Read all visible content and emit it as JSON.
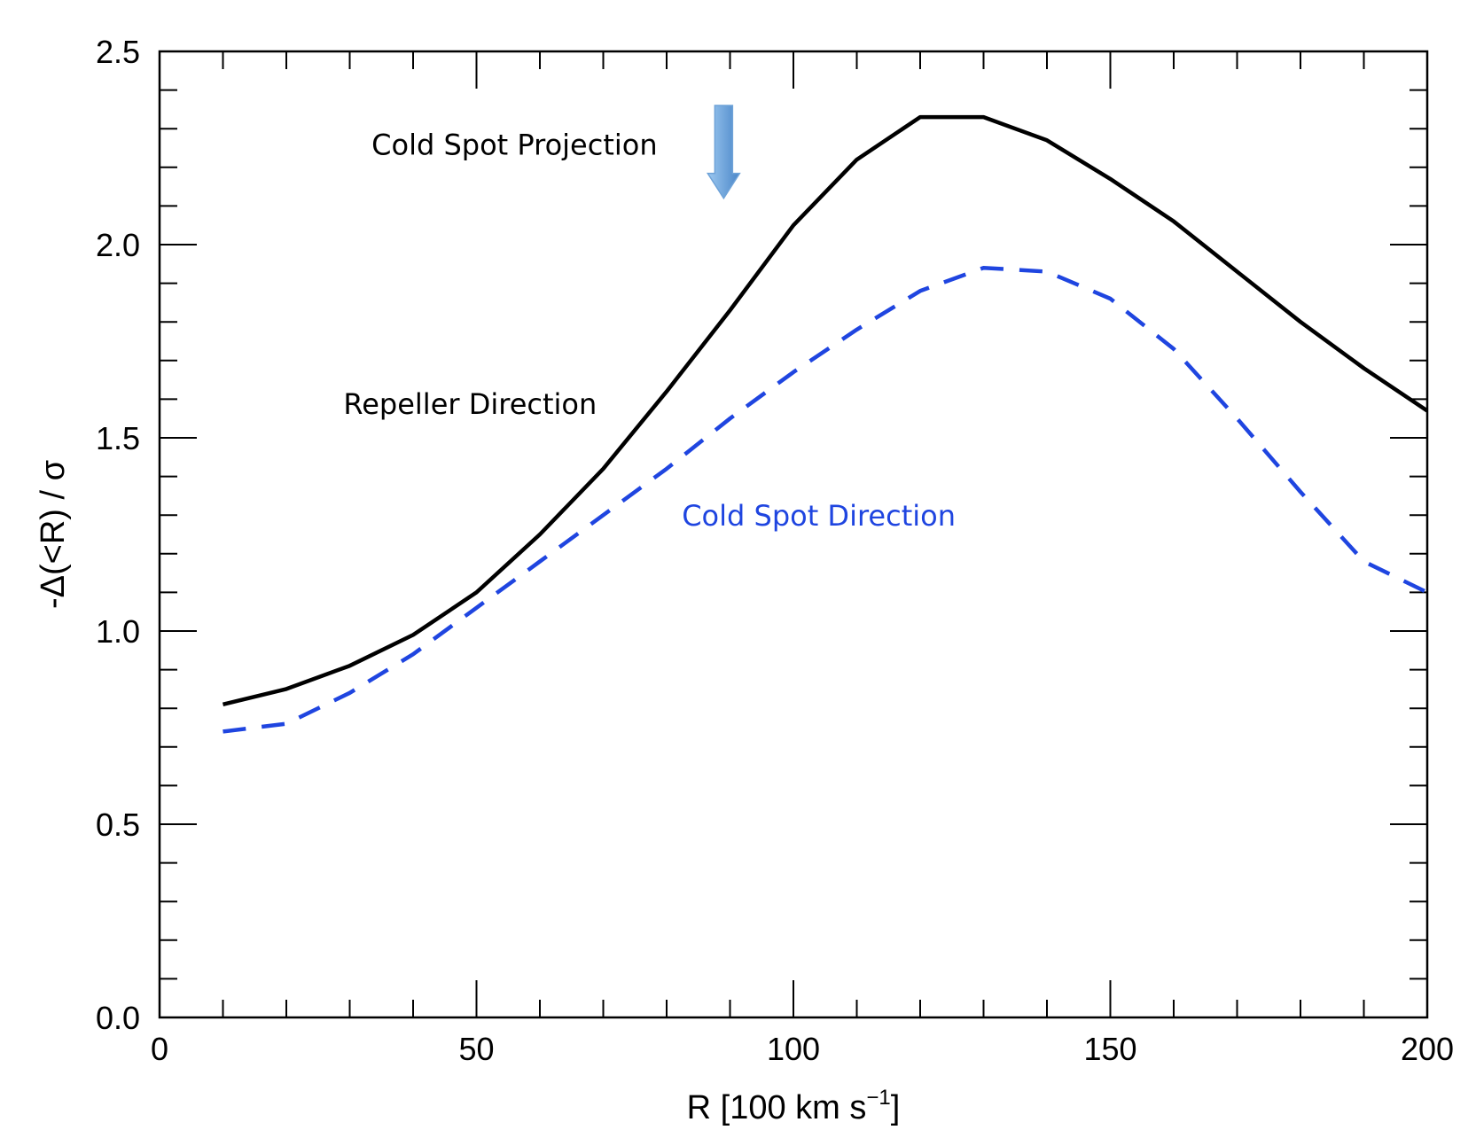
{
  "chart_data": {
    "type": "line",
    "title": "",
    "xlabel": "R [100 km s",
    "xlabel_superscript": "−1",
    "xlabel_suffix": "]",
    "ylabel": "-Δ(<R) / σ",
    "xlim": [
      0,
      200
    ],
    "ylim": [
      0,
      2.5
    ],
    "x_ticks": [
      0,
      50,
      100,
      150,
      200
    ],
    "x_tick_labels": [
      "0",
      "50",
      "100",
      "150",
      "200"
    ],
    "y_ticks": [
      0,
      0.5,
      1.0,
      1.5,
      2.0,
      2.5
    ],
    "y_tick_labels": [
      "0.0",
      "0.5",
      "1.0",
      "1.5",
      "2.0",
      "2.5"
    ],
    "x_minor_step": 10,
    "y_minor_step": 0.1,
    "grid": false,
    "series": [
      {
        "name": "Repeller Direction",
        "style": "solid",
        "color": "#000000",
        "x": [
          10,
          20,
          30,
          40,
          50,
          60,
          70,
          80,
          90,
          100,
          110,
          120,
          130,
          140,
          150,
          160,
          170,
          180,
          190,
          200
        ],
        "values": [
          0.81,
          0.85,
          0.91,
          0.99,
          1.1,
          1.25,
          1.42,
          1.62,
          1.83,
          2.05,
          2.22,
          2.33,
          2.33,
          2.27,
          2.17,
          2.06,
          1.93,
          1.8,
          1.68,
          1.57
        ]
      },
      {
        "name": "Cold Spot Direction",
        "style": "dashed",
        "color": "#1f45e0",
        "x": [
          10,
          20,
          30,
          40,
          50,
          60,
          70,
          80,
          90,
          100,
          110,
          120,
          130,
          140,
          150,
          160,
          170,
          180,
          190,
          200
        ],
        "values": [
          0.74,
          0.76,
          0.84,
          0.94,
          1.06,
          1.18,
          1.3,
          1.42,
          1.55,
          1.67,
          1.78,
          1.88,
          1.94,
          1.93,
          1.86,
          1.73,
          1.55,
          1.36,
          1.18,
          1.1
        ]
      }
    ],
    "annotations": [
      {
        "text": "Cold Spot Projection",
        "x": 56,
        "y": 2.26,
        "color": "#000000",
        "arrow_x": 89,
        "arrow_y_top": 2.36,
        "arrow_y_tip": 2.12,
        "arrow_color": "#5b9bd5"
      },
      {
        "text": "Repeller Direction",
        "x": 49,
        "y": 1.59,
        "color": "#000000"
      },
      {
        "text": "Cold Spot Direction",
        "x": 104,
        "y": 1.3,
        "color": "#1f45e0"
      }
    ]
  }
}
